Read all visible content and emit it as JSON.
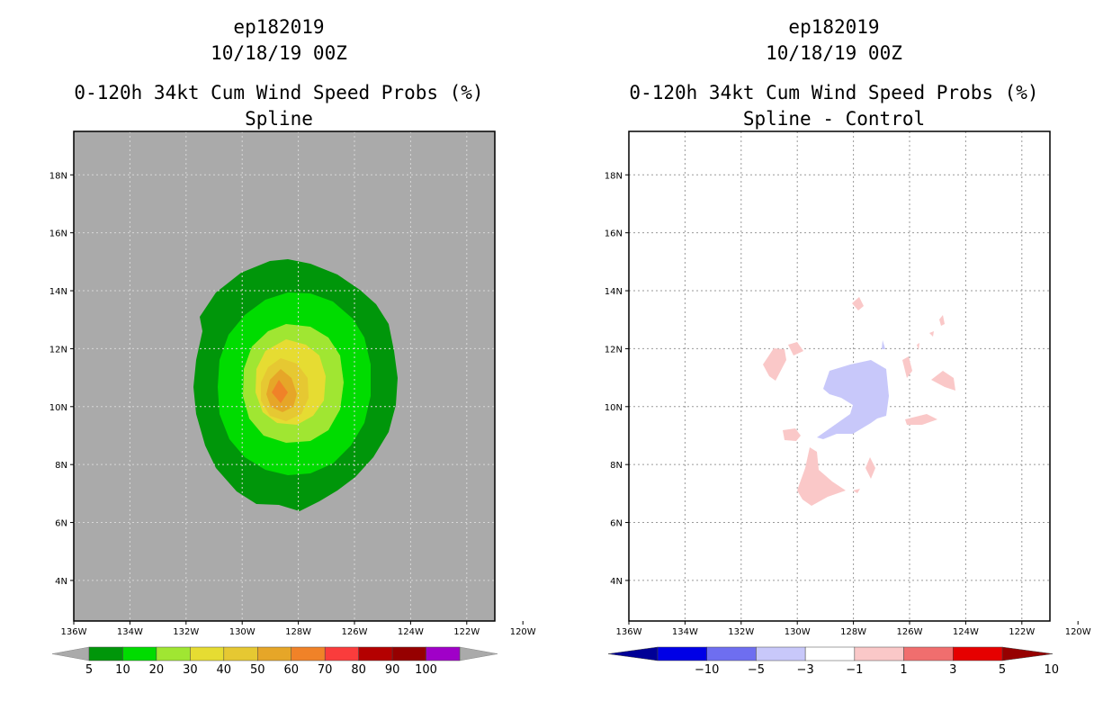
{
  "left": {
    "title_line1": "ep182019",
    "title_line2": "10/18/19 00Z",
    "title_line3": "0-120h 34kt Cum Wind Speed Probs (%)",
    "title_line4": "Spline"
  },
  "right": {
    "title_line1": "ep182019",
    "title_line2": "10/18/19 00Z",
    "title_line3": "0-120h 34kt Cum Wind Speed Probs (%)",
    "title_line4": "Spline - Control"
  },
  "chart_data": [
    {
      "type": "heatmap",
      "title": "0-120h 34kt Cum Wind Speed Probs (%) Spline",
      "x_ticks": [
        "136W",
        "134W",
        "132W",
        "130W",
        "128W",
        "126W",
        "124W",
        "122W",
        "120W"
      ],
      "y_ticks": [
        "4N",
        "6N",
        "8N",
        "10N",
        "12N",
        "14N",
        "16N",
        "18N"
      ],
      "xlim": [
        -136,
        -121
      ],
      "ylim": [
        2.6,
        19.5
      ],
      "legend_levels": [
        "5",
        "10",
        "20",
        "30",
        "40",
        "50",
        "60",
        "70",
        "80",
        "90",
        "100"
      ],
      "legend_colors": [
        "#00960a",
        "#00dc00",
        "#a0e632",
        "#e6dc32",
        "#e6c832",
        "#e6a628",
        "#f08228",
        "#fa3c3c",
        "#b40000",
        "#960000",
        "#a000c8"
      ],
      "peak_center": {
        "lon": -127.9,
        "lat": 10.5,
        "max_pct": 60
      }
    },
    {
      "type": "heatmap",
      "title": "0-120h 34kt Cum Wind Speed Probs (%) Spline - Control",
      "x_ticks": [
        "136W",
        "134W",
        "132W",
        "130W",
        "128W",
        "126W",
        "124W",
        "122W",
        "120W"
      ],
      "y_ticks": [
        "4N",
        "6N",
        "8N",
        "10N",
        "12N",
        "14N",
        "16N",
        "18N"
      ],
      "xlim": [
        -136,
        -121
      ],
      "ylim": [
        2.6,
        19.5
      ],
      "grid": true,
      "legend_levels": [
        "-10",
        "-5",
        "-3",
        "-1",
        "1",
        "3",
        "5",
        "10"
      ],
      "legend_colors": [
        "#000096",
        "#0000e6",
        "#6e6ef0",
        "#c8c8fa",
        "#ffffff",
        "#fac8c8",
        "#f06e6e",
        "#e60000",
        "#960000"
      ]
    }
  ]
}
